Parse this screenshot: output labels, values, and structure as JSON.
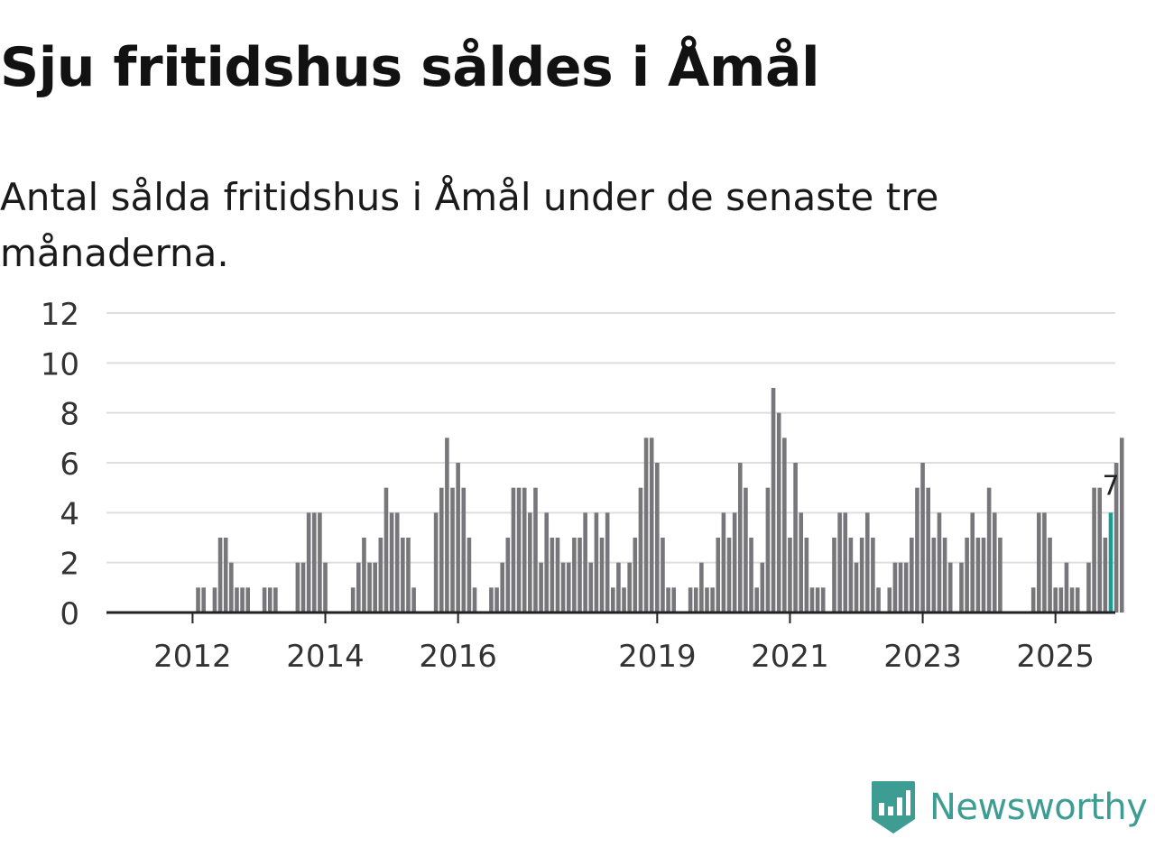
{
  "title": "Sju fritidshus såldes i Åmål",
  "subtitle": "Antal sålda fritidshus i Åmål under de senaste tre månaderna.",
  "brand": {
    "name": "Newsworthy",
    "icon": "newsworthy-logo-icon"
  },
  "colors": {
    "bar": "#77767b",
    "highlight": "#1a9c93",
    "grid": "#dedede",
    "axis": "#222222",
    "text": "#333333",
    "brand": "#3d9d93"
  },
  "chart_data": {
    "type": "bar",
    "title": "Sju fritidshus såldes i Åmål",
    "xlabel": "",
    "ylabel": "",
    "ylim": [
      0,
      12
    ],
    "yticks": [
      0,
      2,
      4,
      6,
      8,
      10,
      12
    ],
    "grid": true,
    "x_start": "2011-06",
    "x_ticks": [
      {
        "label": "2012",
        "index": 7
      },
      {
        "label": "2014",
        "index": 31
      },
      {
        "label": "2016",
        "index": 55
      },
      {
        "label": "2019",
        "index": 91
      },
      {
        "label": "2021",
        "index": 115
      },
      {
        "label": "2023",
        "index": 139
      },
      {
        "label": "2025",
        "index": 163
      }
    ],
    "values": [
      0,
      0,
      0,
      0,
      0,
      0,
      0,
      0,
      1,
      1,
      0,
      1,
      3,
      3,
      2,
      1,
      1,
      1,
      0,
      0,
      1,
      1,
      1,
      0,
      0,
      0,
      2,
      2,
      4,
      4,
      4,
      2,
      0,
      0,
      0,
      0,
      1,
      2,
      3,
      2,
      2,
      3,
      5,
      4,
      4,
      3,
      3,
      1,
      0,
      0,
      0,
      4,
      5,
      7,
      5,
      6,
      5,
      3,
      1,
      0,
      0,
      1,
      1,
      2,
      3,
      5,
      5,
      5,
      4,
      5,
      2,
      4,
      3,
      3,
      2,
      2,
      3,
      3,
      4,
      2,
      4,
      3,
      4,
      1,
      2,
      1,
      2,
      3,
      5,
      7,
      7,
      6,
      3,
      1,
      1,
      0,
      0,
      1,
      1,
      2,
      1,
      1,
      3,
      4,
      3,
      4,
      6,
      5,
      3,
      1,
      2,
      5,
      9,
      8,
      7,
      3,
      6,
      4,
      3,
      1,
      1,
      1,
      0,
      3,
      4,
      4,
      3,
      2,
      3,
      4,
      3,
      1,
      0,
      1,
      2,
      2,
      2,
      3,
      5,
      6,
      5,
      3,
      4,
      3,
      2,
      0,
      2,
      3,
      4,
      3,
      3,
      5,
      4,
      3,
      0,
      0,
      0,
      0,
      0,
      1,
      4,
      4,
      3,
      1,
      1,
      2,
      1,
      1,
      0,
      2,
      5,
      5,
      3,
      4,
      6,
      7
    ],
    "highlight_index": 173,
    "highlight_label": "7"
  }
}
